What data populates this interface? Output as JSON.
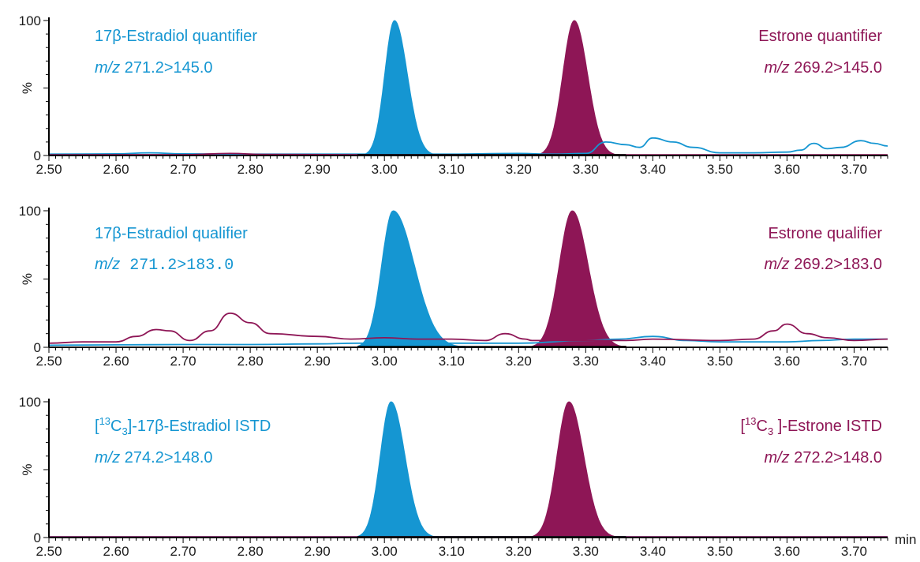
{
  "colors": {
    "estradiol": "#1596d2",
    "estrone": "#8e1656",
    "axis": "#000000"
  },
  "chart_data": [
    {
      "type": "line",
      "xlim": [
        2.5,
        3.75
      ],
      "ylim": [
        0,
        100
      ],
      "ylabel": "%",
      "xlabel": "",
      "grid": false,
      "y_ticks": [
        0,
        100
      ],
      "x_ticks": [
        "2.50",
        "2.60",
        "2.70",
        "2.80",
        "2.90",
        "3.00",
        "3.10",
        "3.20",
        "3.30",
        "3.40",
        "3.50",
        "3.60",
        "3.70"
      ],
      "annotations": [
        {
          "lines": [
            {
              "text": "17β-Estradiol quantifier"
            },
            {
              "prefix": "m/z",
              "text": " 271.2>145.0"
            }
          ],
          "series": "estradiol",
          "align": "left"
        },
        {
          "lines": [
            {
              "text": "Estrone quantifier"
            },
            {
              "prefix": "m/z",
              "text": " 269.2>145.0"
            }
          ],
          "series": "estrone",
          "align": "right"
        }
      ],
      "series": [
        {
          "key": "estradiol",
          "filled_peak": {
            "apex": 3.015,
            "height": 100,
            "start": 2.97,
            "end": 3.08
          },
          "points": [
            [
              2.5,
              1
            ],
            [
              2.6,
              1.2
            ],
            [
              2.65,
              2
            ],
            [
              2.7,
              1.2
            ],
            [
              2.8,
              1
            ],
            [
              2.9,
              1
            ],
            [
              2.97,
              1
            ],
            [
              3.08,
              1
            ],
            [
              3.2,
              1.5
            ],
            [
              3.25,
              1
            ],
            [
              3.3,
              1.5
            ],
            [
              3.33,
              10
            ],
            [
              3.36,
              8
            ],
            [
              3.38,
              6
            ],
            [
              3.4,
              13
            ],
            [
              3.43,
              10
            ],
            [
              3.46,
              6
            ],
            [
              3.5,
              2
            ],
            [
              3.55,
              2
            ],
            [
              3.6,
              2.5
            ],
            [
              3.62,
              4
            ],
            [
              3.64,
              9
            ],
            [
              3.66,
              5
            ],
            [
              3.68,
              6
            ],
            [
              3.71,
              11
            ],
            [
              3.73,
              9
            ],
            [
              3.75,
              7
            ]
          ]
        },
        {
          "key": "estrone",
          "filled_peak": {
            "apex": 3.283,
            "height": 100,
            "start": 3.23,
            "end": 3.35
          },
          "points": [
            [
              2.5,
              0.5
            ],
            [
              2.7,
              0.6
            ],
            [
              2.77,
              1.5
            ],
            [
              2.82,
              0.8
            ],
            [
              3.0,
              0.5
            ],
            [
              3.23,
              0.5
            ],
            [
              3.35,
              0.5
            ],
            [
              3.5,
              0.5
            ],
            [
              3.75,
              0.5
            ]
          ]
        }
      ]
    },
    {
      "type": "line",
      "xlim": [
        2.5,
        3.75
      ],
      "ylim": [
        0,
        100
      ],
      "ylabel": "%",
      "xlabel": "",
      "grid": false,
      "y_ticks": [
        0,
        100
      ],
      "x_ticks": [
        "2.50",
        "2.60",
        "2.70",
        "2.80",
        "2.90",
        "3.00",
        "3.10",
        "3.20",
        "3.30",
        "3.40",
        "3.50",
        "3.60",
        "3.70"
      ],
      "annotations": [
        {
          "lines": [
            {
              "text": "17β-Estradiol qualifier"
            },
            {
              "prefix": "m/z",
              "text": " 271.2>183.0",
              "mono": true
            }
          ],
          "series": "estradiol",
          "align": "left"
        },
        {
          "lines": [
            {
              "text": "Estrone qualifier"
            },
            {
              "prefix": "m/z",
              "text": " 269.2>183.0"
            }
          ],
          "series": "estrone",
          "align": "right"
        }
      ],
      "series": [
        {
          "key": "estradiol",
          "filled_peak": {
            "apex": 3.013,
            "height": 100,
            "start": 2.96,
            "end": 3.12
          },
          "points": [
            [
              2.5,
              1.5
            ],
            [
              2.6,
              1.8
            ],
            [
              2.7,
              2
            ],
            [
              2.8,
              2
            ],
            [
              2.9,
              2.5
            ],
            [
              2.96,
              3
            ],
            [
              3.12,
              3
            ],
            [
              3.2,
              3
            ],
            [
              3.3,
              5
            ],
            [
              3.35,
              6
            ],
            [
              3.4,
              8
            ],
            [
              3.45,
              5
            ],
            [
              3.5,
              4
            ],
            [
              3.6,
              4
            ],
            [
              3.65,
              5
            ],
            [
              3.7,
              6
            ],
            [
              3.75,
              6
            ]
          ]
        },
        {
          "key": "estrone",
          "filled_peak": {
            "apex": 3.28,
            "height": 100,
            "start": 3.22,
            "end": 3.36
          },
          "points": [
            [
              2.5,
              3
            ],
            [
              2.55,
              4
            ],
            [
              2.6,
              4
            ],
            [
              2.63,
              8
            ],
            [
              2.66,
              13
            ],
            [
              2.68,
              12
            ],
            [
              2.71,
              5
            ],
            [
              2.74,
              12
            ],
            [
              2.77,
              25
            ],
            [
              2.8,
              18
            ],
            [
              2.83,
              10
            ],
            [
              2.9,
              8
            ],
            [
              2.95,
              6
            ],
            [
              3.0,
              7
            ],
            [
              3.05,
              6
            ],
            [
              3.1,
              6
            ],
            [
              3.15,
              5
            ],
            [
              3.18,
              10
            ],
            [
              3.21,
              6
            ],
            [
              3.22,
              5
            ],
            [
              3.36,
              5
            ],
            [
              3.4,
              6
            ],
            [
              3.5,
              5
            ],
            [
              3.55,
              6
            ],
            [
              3.58,
              12
            ],
            [
              3.6,
              17
            ],
            [
              3.63,
              10
            ],
            [
              3.66,
              7
            ],
            [
              3.7,
              5
            ],
            [
              3.75,
              6
            ]
          ]
        }
      ]
    },
    {
      "type": "line",
      "xlim": [
        2.5,
        3.75
      ],
      "ylim": [
        0,
        100
      ],
      "ylabel": "%",
      "xlabel": "min",
      "grid": false,
      "y_ticks": [
        0,
        100
      ],
      "x_ticks": [
        "2.50",
        "2.60",
        "2.70",
        "2.80",
        "2.90",
        "3.00",
        "3.10",
        "3.20",
        "3.30",
        "3.40",
        "3.50",
        "3.60",
        "3.70"
      ],
      "annotations": [
        {
          "lines": [
            {
              "text": "[13C3]-17β-Estradiol ISTD",
              "label": "istd"
            },
            {
              "prefix": "m/z",
              "text": " 274.2>148.0"
            }
          ],
          "series": "estradiol",
          "align": "left"
        },
        {
          "lines": [
            {
              "text": "[13C3 ]-Estrone ISTD",
              "label": "istd"
            },
            {
              "prefix": "m/z",
              "text": " 272.2>148.0"
            }
          ],
          "series": "estrone",
          "align": "right"
        }
      ],
      "series": [
        {
          "key": "estradiol",
          "filled_peak": {
            "apex": 3.01,
            "height": 100,
            "start": 2.96,
            "end": 3.08
          },
          "points": [
            [
              2.5,
              0.5
            ],
            [
              3.2,
              0.5
            ],
            [
              3.5,
              0.5
            ],
            [
              3.75,
              0.5
            ]
          ]
        },
        {
          "key": "estrone",
          "filled_peak": {
            "apex": 3.275,
            "height": 100,
            "start": 3.22,
            "end": 3.35
          },
          "points": [
            [
              2.5,
              0.5
            ],
            [
              3.0,
              0.5
            ],
            [
              3.5,
              0.5
            ],
            [
              3.75,
              0.5
            ]
          ]
        }
      ]
    }
  ]
}
